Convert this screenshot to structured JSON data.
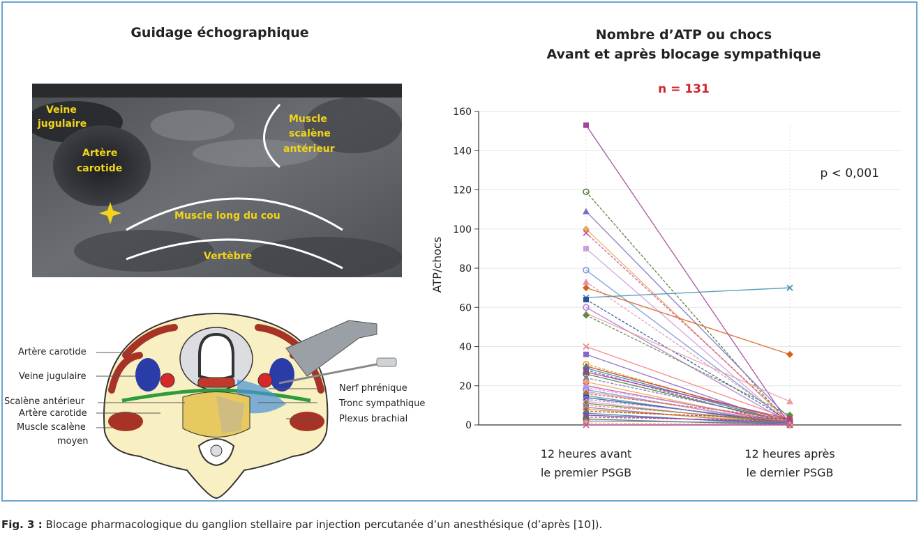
{
  "ultrasound_panel": {
    "title": "Guidage échographique",
    "labels": {
      "veine": "Veine jugulaire",
      "veine_l1": "Veine",
      "veine_l2": "jugulaire",
      "artere_l1": "Artère",
      "artere_l2": "carotide",
      "muscle_l1": "Muscle",
      "muscle_l2": "scalène",
      "muscle_l3": "antérieur",
      "long_cou": "Muscle long du cou",
      "vertebre": "Vertèbre"
    }
  },
  "diagram_panel": {
    "left_labels": {
      "artere_carotide_1": "Artère carotide",
      "veine_jugulaire": "Veine jugulaire",
      "scalene_anterieur": "Scalène antérieur",
      "artere_carotide_2": "Artère carotide",
      "muscle_scalene_l1": "Muscle scalène",
      "muscle_scalene_l2": "moyen"
    },
    "right_labels": {
      "nerf_phrenique": "Nerf phrénique",
      "tronc_sympathique": "Tronc sympathique",
      "plexus_brachial": "Plexus brachial"
    }
  },
  "chart_panel": {
    "title_line1": "Nombre d’ATP ou chocs",
    "title_line2": "Avant et après blocage sympathique",
    "n_label": "n = 131",
    "p_value": "p < 0,001"
  },
  "chart_data": {
    "type": "line",
    "title": "Nombre d’ATP ou chocs Avant et après blocage sympathique",
    "ylabel": "ATP/chocs",
    "ylim": [
      0,
      160
    ],
    "yticks": [
      0,
      20,
      40,
      60,
      80,
      100,
      120,
      140,
      160
    ],
    "grid": true,
    "categories": [
      "12 heures avant le premier PSGB",
      "12 heures après le dernier PSGB"
    ],
    "category_lines": [
      [
        "12 heures avant",
        "le premier PSGB"
      ],
      [
        "12 heures après",
        "le dernier PSGB"
      ]
    ],
    "series_colors": [
      "#a0459b",
      "#4b7a2e",
      "#7b6fc4",
      "#f2a65a",
      "#c54fa6",
      "#c9a0dc",
      "#6f95d8",
      "#e08fb4",
      "#d95f1b",
      "#3e8fb0",
      "#2f4f9e",
      "#b07bd1",
      "#e5a0a8",
      "#5d8c3e",
      "#f08080",
      "#8a63c9",
      "#d4a017",
      "#c0392b",
      "#2e86ab",
      "#7d3c98"
    ],
    "series_values": [
      [
        153,
        0
      ],
      [
        119,
        0
      ],
      [
        109,
        3
      ],
      [
        100,
        1
      ],
      [
        98,
        2
      ],
      [
        90,
        0
      ],
      [
        79,
        1
      ],
      [
        73,
        2
      ],
      [
        70,
        36
      ],
      [
        65,
        70
      ],
      [
        64,
        2
      ],
      [
        60,
        1
      ],
      [
        57,
        12
      ],
      [
        56,
        5
      ],
      [
        40,
        3
      ],
      [
        36,
        0
      ],
      [
        31,
        1
      ],
      [
        30,
        2
      ],
      [
        29,
        1
      ],
      [
        28,
        0
      ],
      [
        27,
        3
      ],
      [
        26,
        1
      ],
      [
        24,
        2
      ],
      [
        22,
        0
      ],
      [
        20,
        1
      ],
      [
        19,
        2
      ],
      [
        18,
        0
      ],
      [
        17,
        1
      ],
      [
        16,
        3
      ],
      [
        15,
        0
      ],
      [
        14,
        1
      ],
      [
        13,
        2
      ],
      [
        12,
        0
      ],
      [
        11,
        1
      ],
      [
        10,
        2
      ],
      [
        9,
        0
      ],
      [
        8,
        1
      ],
      [
        7,
        3
      ],
      [
        6,
        0
      ],
      [
        5,
        1
      ],
      [
        4,
        2
      ],
      [
        3,
        0
      ],
      [
        2,
        1
      ],
      [
        1,
        0
      ],
      [
        0,
        0
      ]
    ]
  },
  "caption": {
    "prefix": "Fig. 3 :",
    "text": " Blocage pharmacologique du ganglion stellaire par injection percutanée d’un anesthésique (d’après [10])."
  }
}
